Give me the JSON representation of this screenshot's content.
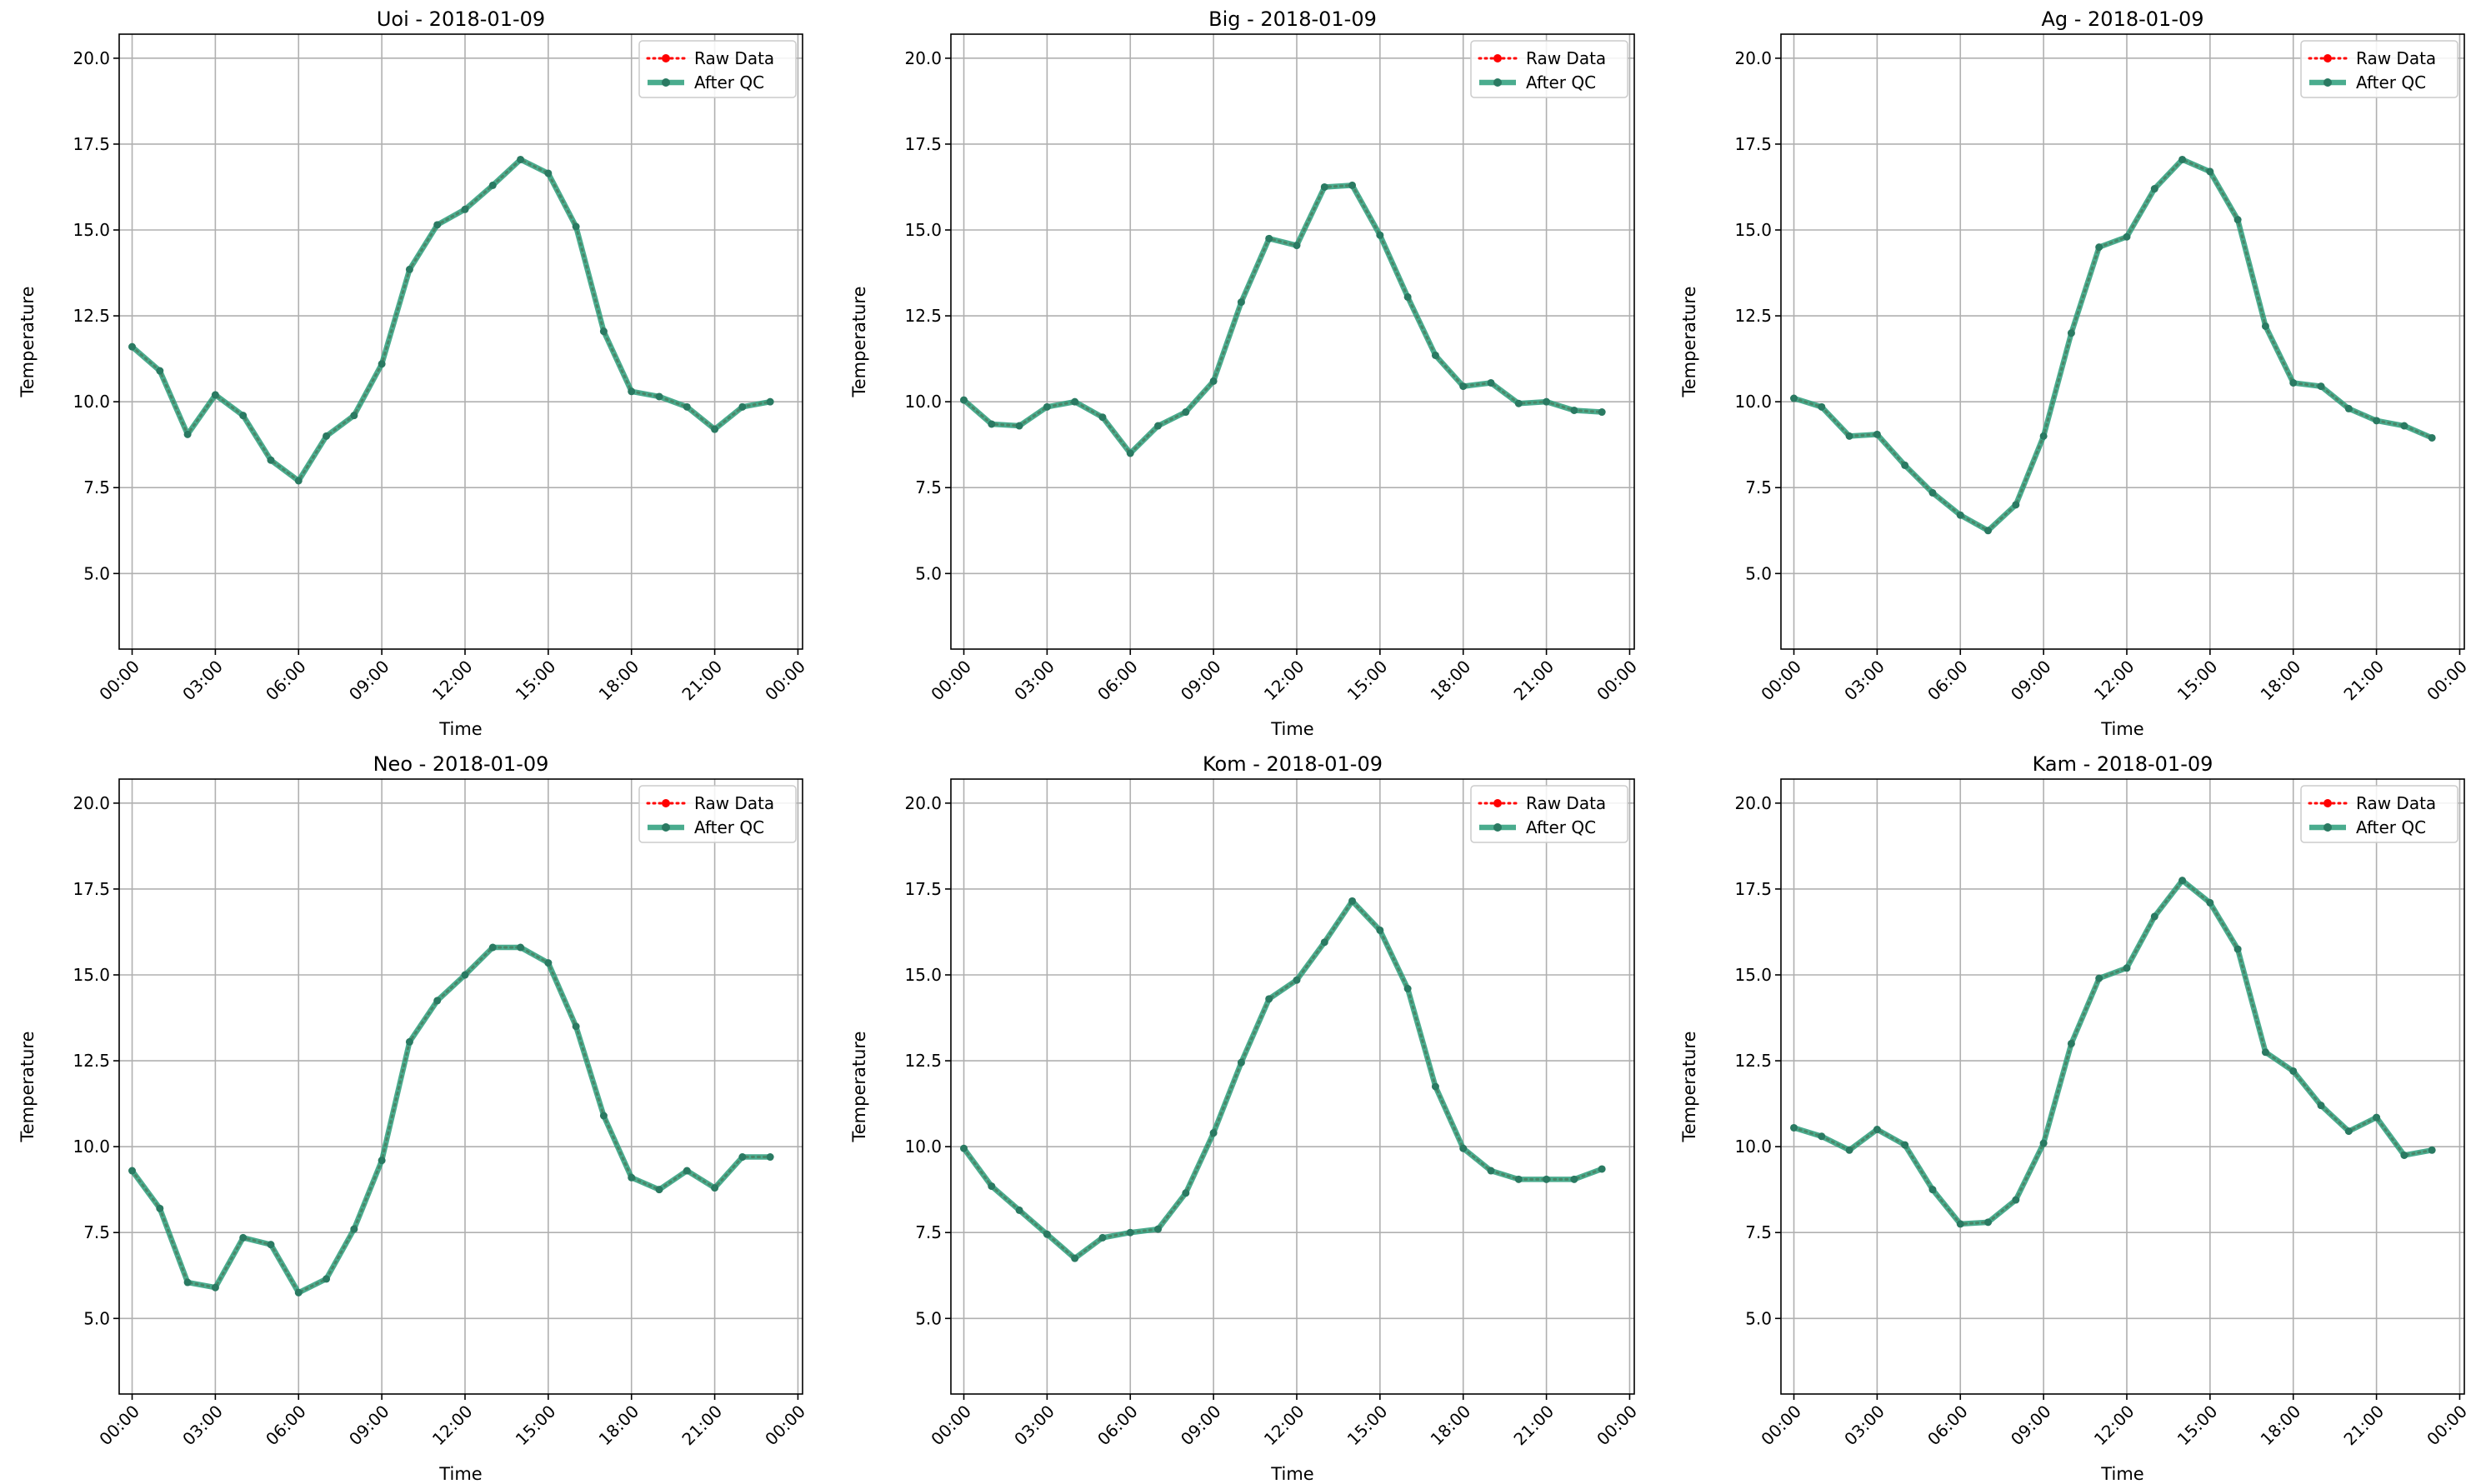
{
  "legend": {
    "raw_label": "Raw Data",
    "qc_label": "After QC",
    "placement": "upper right"
  },
  "colors": {
    "raw": "#ff0000",
    "qc": "#2a9d7a",
    "grid": "#b0b0b0"
  },
  "chart_data": [
    {
      "type": "line",
      "title": "Uoi - 2018-01-09",
      "xlabel": "Time",
      "ylabel": "Temperature",
      "ylim": [
        2.8,
        20.7
      ],
      "yticks": [
        5.0,
        7.5,
        10.0,
        12.5,
        15.0,
        17.5,
        20.0
      ],
      "ytick_labels": [
        "5.0",
        "7.5",
        "10.0",
        "12.5",
        "15.0",
        "17.5",
        "20.0"
      ],
      "xlim": [
        "-00:28",
        "24:10"
      ],
      "xticks": [
        "00:00",
        "03:00",
        "06:00",
        "09:00",
        "12:00",
        "15:00",
        "18:00",
        "21:00",
        "00:00"
      ],
      "grid": true,
      "x": [
        "00:00",
        "01:00",
        "02:00",
        "03:00",
        "04:00",
        "05:00",
        "06:00",
        "07:00",
        "08:00",
        "09:00",
        "10:00",
        "11:00",
        "12:00",
        "13:00",
        "14:00",
        "15:00",
        "16:00",
        "17:00",
        "18:00",
        "19:00",
        "20:00",
        "21:00",
        "22:00",
        "23:00"
      ],
      "series": [
        {
          "name": "Raw Data",
          "values": [
            11.6,
            10.9,
            9.05,
            10.2,
            9.6,
            8.3,
            7.7,
            9.0,
            9.6,
            11.1,
            13.85,
            15.15,
            15.6,
            16.3,
            17.05,
            16.65,
            15.1,
            12.05,
            10.3,
            10.15,
            9.85,
            9.2,
            9.85,
            10.0
          ]
        },
        {
          "name": "After QC",
          "values": [
            11.6,
            10.9,
            9.05,
            10.2,
            9.6,
            8.3,
            7.7,
            9.0,
            9.6,
            11.1,
            13.85,
            15.15,
            15.6,
            16.3,
            17.05,
            16.65,
            15.1,
            12.05,
            10.3,
            10.15,
            9.85,
            9.2,
            9.85,
            10.0
          ]
        }
      ]
    },
    {
      "type": "line",
      "title": "Big - 2018-01-09",
      "xlabel": "Time",
      "ylabel": "Temperature",
      "ylim": [
        2.8,
        20.7
      ],
      "yticks": [
        5.0,
        7.5,
        10.0,
        12.5,
        15.0,
        17.5,
        20.0
      ],
      "ytick_labels": [
        "5.0",
        "7.5",
        "10.0",
        "12.5",
        "15.0",
        "17.5",
        "20.0"
      ],
      "xlim": [
        "-00:28",
        "24:10"
      ],
      "xticks": [
        "00:00",
        "03:00",
        "06:00",
        "09:00",
        "12:00",
        "15:00",
        "18:00",
        "21:00",
        "00:00"
      ],
      "grid": true,
      "x": [
        "00:00",
        "01:00",
        "02:00",
        "03:00",
        "04:00",
        "05:00",
        "06:00",
        "07:00",
        "08:00",
        "09:00",
        "10:00",
        "11:00",
        "12:00",
        "13:00",
        "14:00",
        "15:00",
        "16:00",
        "17:00",
        "18:00",
        "19:00",
        "20:00",
        "21:00",
        "22:00",
        "23:00"
      ],
      "series": [
        {
          "name": "Raw Data",
          "values": [
            10.05,
            9.35,
            9.3,
            9.85,
            10.0,
            9.55,
            8.5,
            9.3,
            9.7,
            10.6,
            12.9,
            14.75,
            14.55,
            16.25,
            16.3,
            14.85,
            13.05,
            11.35,
            10.45,
            10.55,
            9.95,
            10.0,
            9.75,
            9.7
          ]
        },
        {
          "name": "After QC",
          "values": [
            10.05,
            9.35,
            9.3,
            9.85,
            10.0,
            9.55,
            8.5,
            9.3,
            9.7,
            10.6,
            12.9,
            14.75,
            14.55,
            16.25,
            16.3,
            14.85,
            13.05,
            11.35,
            10.45,
            10.55,
            9.95,
            10.0,
            9.75,
            9.7
          ]
        }
      ]
    },
    {
      "type": "line",
      "title": "Ag - 2018-01-09",
      "xlabel": "Time",
      "ylabel": "Temperature",
      "ylim": [
        2.8,
        20.7
      ],
      "yticks": [
        5.0,
        7.5,
        10.0,
        12.5,
        15.0,
        17.5,
        20.0
      ],
      "ytick_labels": [
        "5.0",
        "7.5",
        "10.0",
        "12.5",
        "15.0",
        "17.5",
        "20.0"
      ],
      "xlim": [
        "-00:28",
        "24:10"
      ],
      "xticks": [
        "00:00",
        "03:00",
        "06:00",
        "09:00",
        "12:00",
        "15:00",
        "18:00",
        "21:00",
        "00:00"
      ],
      "grid": true,
      "x": [
        "00:00",
        "01:00",
        "02:00",
        "03:00",
        "04:00",
        "05:00",
        "06:00",
        "07:00",
        "08:00",
        "09:00",
        "10:00",
        "11:00",
        "12:00",
        "13:00",
        "14:00",
        "15:00",
        "16:00",
        "17:00",
        "18:00",
        "19:00",
        "20:00",
        "21:00",
        "22:00",
        "23:00"
      ],
      "series": [
        {
          "name": "Raw Data",
          "values": [
            10.1,
            9.85,
            9.0,
            9.05,
            8.15,
            7.35,
            6.7,
            6.25,
            7.0,
            9.0,
            12.0,
            14.5,
            14.8,
            16.2,
            17.05,
            16.7,
            15.3,
            12.2,
            10.55,
            10.45,
            9.8,
            9.45,
            9.3,
            8.95
          ]
        },
        {
          "name": "After QC",
          "values": [
            10.1,
            9.85,
            9.0,
            9.05,
            8.15,
            7.35,
            6.7,
            6.25,
            7.0,
            9.0,
            12.0,
            14.5,
            14.8,
            16.2,
            17.05,
            16.7,
            15.3,
            12.2,
            10.55,
            10.45,
            9.8,
            9.45,
            9.3,
            8.95
          ]
        }
      ]
    },
    {
      "type": "line",
      "title": "Neo - 2018-01-09",
      "xlabel": "Time",
      "ylabel": "Temperature",
      "ylim": [
        2.8,
        20.7
      ],
      "yticks": [
        5.0,
        7.5,
        10.0,
        12.5,
        15.0,
        17.5,
        20.0
      ],
      "ytick_labels": [
        "5.0",
        "7.5",
        "10.0",
        "12.5",
        "15.0",
        "17.5",
        "20.0"
      ],
      "xlim": [
        "-00:28",
        "24:10"
      ],
      "xticks": [
        "00:00",
        "03:00",
        "06:00",
        "09:00",
        "12:00",
        "15:00",
        "18:00",
        "21:00",
        "00:00"
      ],
      "grid": true,
      "x": [
        "00:00",
        "01:00",
        "02:00",
        "03:00",
        "04:00",
        "05:00",
        "06:00",
        "07:00",
        "08:00",
        "09:00",
        "10:00",
        "11:00",
        "12:00",
        "13:00",
        "14:00",
        "15:00",
        "16:00",
        "17:00",
        "18:00",
        "19:00",
        "20:00",
        "21:00",
        "22:00",
        "23:00"
      ],
      "series": [
        {
          "name": "Raw Data",
          "values": [
            9.3,
            8.2,
            6.05,
            5.9,
            7.35,
            7.15,
            5.75,
            6.15,
            7.6,
            9.6,
            13.05,
            14.25,
            15.0,
            15.8,
            15.8,
            15.35,
            13.5,
            10.9,
            9.1,
            8.75,
            9.3,
            8.8,
            9.7,
            9.7
          ]
        },
        {
          "name": "After QC",
          "values": [
            9.3,
            8.2,
            6.05,
            5.9,
            7.35,
            7.15,
            5.75,
            6.15,
            7.6,
            9.6,
            13.05,
            14.25,
            15.0,
            15.8,
            15.8,
            15.35,
            13.5,
            10.9,
            9.1,
            8.75,
            9.3,
            8.8,
            9.7,
            9.7
          ]
        }
      ]
    },
    {
      "type": "line",
      "title": "Kom - 2018-01-09",
      "xlabel": "Time",
      "ylabel": "Temperature",
      "ylim": [
        2.8,
        20.7
      ],
      "yticks": [
        5.0,
        7.5,
        10.0,
        12.5,
        15.0,
        17.5,
        20.0
      ],
      "ytick_labels": [
        "5.0",
        "7.5",
        "10.0",
        "12.5",
        "15.0",
        "17.5",
        "20.0"
      ],
      "xlim": [
        "-00:28",
        "24:10"
      ],
      "xticks": [
        "00:00",
        "03:00",
        "06:00",
        "09:00",
        "12:00",
        "15:00",
        "18:00",
        "21:00",
        "00:00"
      ],
      "grid": true,
      "x": [
        "00:00",
        "01:00",
        "02:00",
        "03:00",
        "04:00",
        "05:00",
        "06:00",
        "07:00",
        "08:00",
        "09:00",
        "10:00",
        "11:00",
        "12:00",
        "13:00",
        "14:00",
        "15:00",
        "16:00",
        "17:00",
        "18:00",
        "19:00",
        "20:00",
        "21:00",
        "22:00",
        "23:00"
      ],
      "series": [
        {
          "name": "Raw Data",
          "values": [
            9.95,
            8.85,
            8.15,
            7.45,
            6.75,
            7.35,
            7.5,
            7.6,
            8.65,
            10.4,
            12.45,
            14.3,
            14.85,
            15.95,
            17.15,
            16.3,
            14.6,
            11.75,
            9.95,
            9.3,
            9.05,
            9.05,
            9.05,
            9.35
          ]
        },
        {
          "name": "After QC",
          "values": [
            9.95,
            8.85,
            8.15,
            7.45,
            6.75,
            7.35,
            7.5,
            7.6,
            8.65,
            10.4,
            12.45,
            14.3,
            14.85,
            15.95,
            17.15,
            16.3,
            14.6,
            11.75,
            9.95,
            9.3,
            9.05,
            9.05,
            9.05,
            9.35
          ]
        }
      ]
    },
    {
      "type": "line",
      "title": "Kam - 2018-01-09",
      "xlabel": "Time",
      "ylabel": "Temperature",
      "ylim": [
        2.8,
        20.7
      ],
      "yticks": [
        5.0,
        7.5,
        10.0,
        12.5,
        15.0,
        17.5,
        20.0
      ],
      "ytick_labels": [
        "5.0",
        "7.5",
        "10.0",
        "12.5",
        "15.0",
        "17.5",
        "20.0"
      ],
      "xlim": [
        "-00:28",
        "24:10"
      ],
      "xticks": [
        "00:00",
        "03:00",
        "06:00",
        "09:00",
        "12:00",
        "15:00",
        "18:00",
        "21:00",
        "00:00"
      ],
      "grid": true,
      "x": [
        "00:00",
        "01:00",
        "02:00",
        "03:00",
        "04:00",
        "05:00",
        "06:00",
        "07:00",
        "08:00",
        "09:00",
        "10:00",
        "11:00",
        "12:00",
        "13:00",
        "14:00",
        "15:00",
        "16:00",
        "17:00",
        "18:00",
        "19:00",
        "20:00",
        "21:00",
        "22:00",
        "23:00"
      ],
      "series": [
        {
          "name": "Raw Data",
          "values": [
            10.55,
            10.3,
            9.9,
            10.5,
            10.05,
            8.75,
            7.75,
            7.8,
            8.45,
            10.1,
            13.0,
            14.9,
            15.2,
            16.7,
            17.75,
            17.1,
            15.75,
            12.75,
            12.2,
            11.2,
            10.45,
            10.85,
            9.75,
            9.9
          ]
        },
        {
          "name": "After QC",
          "values": [
            10.55,
            10.3,
            9.9,
            10.5,
            10.05,
            8.75,
            7.75,
            7.8,
            8.45,
            10.1,
            13.0,
            14.9,
            15.2,
            16.7,
            17.75,
            17.1,
            15.75,
            12.75,
            12.2,
            11.2,
            10.45,
            10.85,
            9.75,
            9.9
          ]
        }
      ]
    }
  ]
}
